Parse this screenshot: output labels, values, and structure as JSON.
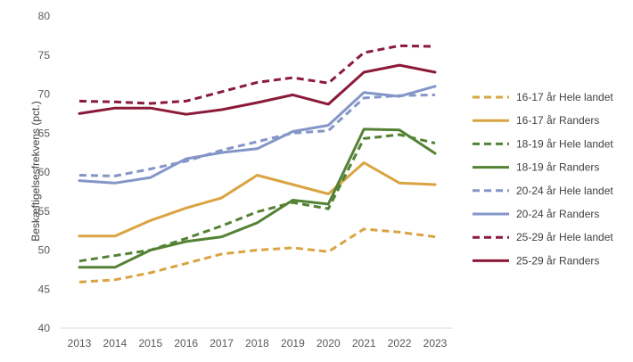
{
  "chart_data": {
    "type": "line",
    "title": "",
    "xlabel": "",
    "ylabel": "Beskæftigelsesfrekvens (pct.)",
    "ylim": [
      40,
      80
    ],
    "yticks": [
      40,
      45,
      50,
      55,
      60,
      65,
      70,
      75,
      80
    ],
    "grid": false,
    "legend_position": "right",
    "x": [
      "2013",
      "2014",
      "2015",
      "2016",
      "2017",
      "2018",
      "2019",
      "2020",
      "2021",
      "2022",
      "2023"
    ],
    "series": [
      {
        "name": "16-17 år Hele landet",
        "color": "#D9A441",
        "dash": true,
        "values": [
          45.9,
          46.2,
          47.1,
          48.3,
          49.5,
          50.0,
          50.3,
          49.8,
          52.7,
          52.3,
          51.7
        ]
      },
      {
        "name": "16-17 år Randers",
        "color": "#D9A441",
        "dash": false,
        "values": [
          51.8,
          51.8,
          53.8,
          55.4,
          56.7,
          59.6,
          58.4,
          57.2,
          61.2,
          58.6,
          58.4
        ]
      },
      {
        "name": "18-19 år Hele landet",
        "color": "#548235",
        "dash": true,
        "values": [
          48.6,
          49.3,
          50.0,
          51.5,
          53.1,
          54.9,
          56.1,
          55.3,
          64.3,
          64.8,
          63.7
        ]
      },
      {
        "name": "18-19 år Randers",
        "color": "#548235",
        "dash": false,
        "values": [
          47.8,
          47.8,
          50.0,
          51.1,
          51.7,
          53.5,
          56.4,
          55.9,
          65.5,
          65.4,
          62.4
        ]
      },
      {
        "name": "20-24 år Hele landet",
        "color": "#8496C8",
        "dash": true,
        "values": [
          59.6,
          59.5,
          60.4,
          61.4,
          62.8,
          63.9,
          65.0,
          65.3,
          69.5,
          69.8,
          69.9
        ]
      },
      {
        "name": "20-24 år Randers",
        "color": "#8496C8",
        "dash": false,
        "values": [
          58.9,
          58.6,
          59.3,
          61.7,
          62.5,
          63.0,
          65.2,
          66.0,
          70.2,
          69.7,
          71.0
        ]
      },
      {
        "name": "25-29 år Hele landet",
        "color": "#8B1A3A",
        "dash": true,
        "values": [
          69.1,
          69.0,
          68.8,
          69.1,
          70.3,
          71.5,
          72.1,
          71.4,
          75.3,
          76.2,
          76.1
        ]
      },
      {
        "name": "25-29 år Randers",
        "color": "#8B1A3A",
        "dash": false,
        "values": [
          67.5,
          68.2,
          68.2,
          67.4,
          68.0,
          68.9,
          69.9,
          68.7,
          72.8,
          73.7,
          72.8
        ]
      }
    ]
  }
}
